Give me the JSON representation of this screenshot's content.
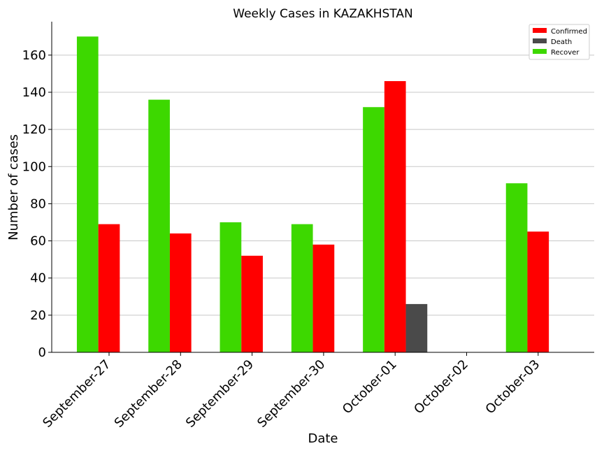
{
  "chart_data": {
    "type": "bar",
    "title": "Weekly Cases in KAZAKHSTAN",
    "xlabel": "Date",
    "ylabel": "Number of cases",
    "categories": [
      "September-27",
      "September-28",
      "September-29",
      "September-30",
      "October-01",
      "October-02",
      "October-03"
    ],
    "series": [
      {
        "name": "Recover",
        "color": "#3dd800",
        "values": [
          170,
          136,
          70,
          69,
          132,
          0,
          91
        ]
      },
      {
        "name": "Confirmed",
        "color": "#ff0000",
        "values": [
          69,
          64,
          52,
          58,
          146,
          0,
          65
        ]
      },
      {
        "name": "Death",
        "color": "#4a4a4a",
        "values": [
          0,
          0,
          0,
          0,
          26,
          0,
          0
        ]
      }
    ],
    "legend_order": [
      "Confirmed",
      "Death",
      "Recover"
    ],
    "legend_position": "top-right",
    "ylim": [
      0,
      178
    ],
    "yticks": [
      0,
      20,
      40,
      60,
      80,
      100,
      120,
      140,
      160
    ],
    "grid": "horizontal"
  }
}
